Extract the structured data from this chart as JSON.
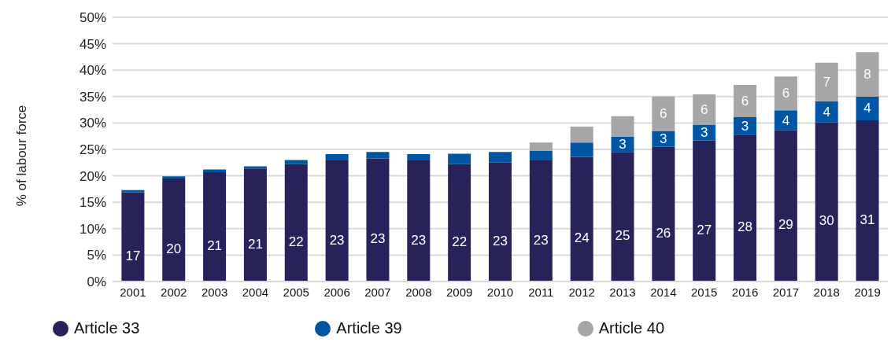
{
  "chart_data": {
    "type": "bar",
    "stacked": true,
    "ylabel": "% of labour force",
    "categories": [
      "2001",
      "2002",
      "2003",
      "2004",
      "2005",
      "2006",
      "2007",
      "2008",
      "2009",
      "2010",
      "2011",
      "2012",
      "2013",
      "2014",
      "2015",
      "2016",
      "2017",
      "2018",
      "2019"
    ],
    "series": [
      {
        "name": "Article 33",
        "color": "#27235a",
        "values": [
          16.9,
          19.5,
          20.7,
          21.4,
          22.2,
          22.9,
          23.3,
          22.9,
          22.2,
          22.5,
          22.9,
          23.6,
          24.5,
          25.5,
          26.7,
          27.8,
          28.6,
          30.1,
          30.5
        ],
        "value_labels": [
          "17",
          "20",
          "21",
          "21",
          "22",
          "23",
          "23",
          "23",
          "22",
          "23",
          "23",
          "24",
          "25",
          "26",
          "27",
          "28",
          "29",
          "30",
          "31"
        ]
      },
      {
        "name": "Article 39",
        "color": "#0055a5",
        "values": [
          0.4,
          0.4,
          0.5,
          0.4,
          0.8,
          1.2,
          1.2,
          1.2,
          2.0,
          2.0,
          1.8,
          2.7,
          2.9,
          3.0,
          3.0,
          3.3,
          3.8,
          4.0,
          4.5
        ],
        "value_labels": [
          null,
          null,
          null,
          null,
          null,
          null,
          null,
          null,
          null,
          null,
          null,
          null,
          "3",
          "3",
          "3",
          "3",
          "4",
          "4",
          "4"
        ]
      },
      {
        "name": "Article 40",
        "color": "#a6a6a6",
        "values": [
          null,
          null,
          null,
          null,
          null,
          null,
          null,
          null,
          null,
          null,
          1.6,
          3.0,
          3.9,
          6.5,
          5.7,
          6.1,
          6.4,
          7.3,
          8.4
        ],
        "value_labels": [
          null,
          null,
          null,
          null,
          null,
          null,
          null,
          null,
          null,
          null,
          null,
          null,
          null,
          "6",
          "6",
          "6",
          "6",
          "7",
          "8"
        ]
      }
    ],
    "ylim": [
      0,
      50
    ],
    "yticks": [
      {
        "value": 0,
        "label": "0%"
      },
      {
        "value": 5,
        "label": "5%"
      },
      {
        "value": 10,
        "label": "10%"
      },
      {
        "value": 15,
        "label": "15%"
      },
      {
        "value": 20,
        "label": "20%"
      },
      {
        "value": 25,
        "label": "25%"
      },
      {
        "value": 30,
        "label": "30%"
      },
      {
        "value": 35,
        "label": "35%"
      },
      {
        "value": 40,
        "label": "40%"
      },
      {
        "value": 45,
        "label": "45%"
      },
      {
        "value": 50,
        "label": "50%"
      }
    ],
    "grid": "y",
    "legend": "bottom",
    "marker": "circle"
  }
}
